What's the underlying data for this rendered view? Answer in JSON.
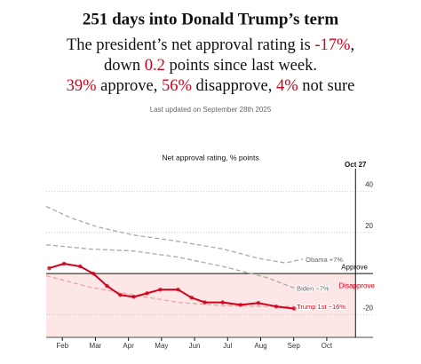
{
  "header": {
    "title": "251 days into Donald Trump’s term",
    "line1": [
      "The president’s net approval rating is ",
      "-17%",
      ","
    ],
    "line2": [
      "down ",
      "0.2",
      " points since last week."
    ],
    "line3": [
      "39%",
      " approve, ",
      "56%",
      " disapprove, ",
      "4%",
      " not sure"
    ],
    "updated": "Last updated on September 28th 2025"
  },
  "chart_data": {
    "type": "line",
    "title": "Net approval rating, % points",
    "xlim": [
      1.51,
      11.4
    ],
    "ylim": [
      -31,
      51
    ],
    "xticks": [
      {
        "value": 2,
        "label": "Feb"
      },
      {
        "value": 3,
        "label": "Mar"
      },
      {
        "value": 4,
        "label": "Apr"
      },
      {
        "value": 5,
        "label": "May"
      },
      {
        "value": 6,
        "label": "Jun"
      },
      {
        "value": 7,
        "label": "Jul"
      },
      {
        "value": 8,
        "label": "Aug"
      },
      {
        "value": 9,
        "label": "Sep"
      },
      {
        "value": 10,
        "label": "Oct"
      }
    ],
    "yticks": [
      40,
      20,
      -20
    ],
    "grid": true,
    "marker_line": {
      "x": 10.87,
      "label": "Oct 27"
    },
    "zone_labels": {
      "above": "Approve",
      "below": "Disapprove"
    },
    "series": [
      {
        "name": "Obama +7%",
        "color": "#aaaaaa",
        "dashed": true,
        "x": [
          1.51,
          2.27,
          3.08,
          4.16,
          5.5,
          6.85,
          7.93,
          8.74,
          9.28
        ],
        "values": [
          32.6,
          27,
          22.6,
          18.7,
          15.7,
          12,
          7.4,
          5.2,
          7
        ]
      },
      {
        "name": "Biden −7%",
        "color": "#aaaaaa",
        "dashed": true,
        "x": [
          1.51,
          2.81,
          4.16,
          5.5,
          6.85,
          8.2,
          9.01
        ],
        "values": [
          14,
          12,
          11,
          8,
          3.5,
          -2,
          -7
        ]
      },
      {
        "name": "Trump 1st −16%",
        "color": "#f2a0a0",
        "dashed": true,
        "label_color": "#d0021b",
        "x": [
          1.51,
          2.81,
          4.16,
          5.5,
          6.85,
          8.2,
          9.01
        ],
        "values": [
          -1,
          -6.5,
          -10.4,
          -14,
          -15.6,
          -16,
          -16
        ]
      },
      {
        "color": "#d0021b",
        "dashed": false,
        "x": [
          1.6,
          2.05,
          2.54,
          2.94,
          3.35,
          3.75,
          4.16,
          4.56,
          4.96,
          5.5,
          5.91,
          6.31,
          6.85,
          7.39,
          7.93,
          8.47,
          9.01
        ],
        "values": [
          2.6,
          4.8,
          3.5,
          0,
          -6,
          -10.4,
          -11.3,
          -9.6,
          -7.8,
          -7.8,
          -11.7,
          -14,
          -14,
          -15.2,
          -14.3,
          -16,
          -17
        ]
      }
    ]
  }
}
